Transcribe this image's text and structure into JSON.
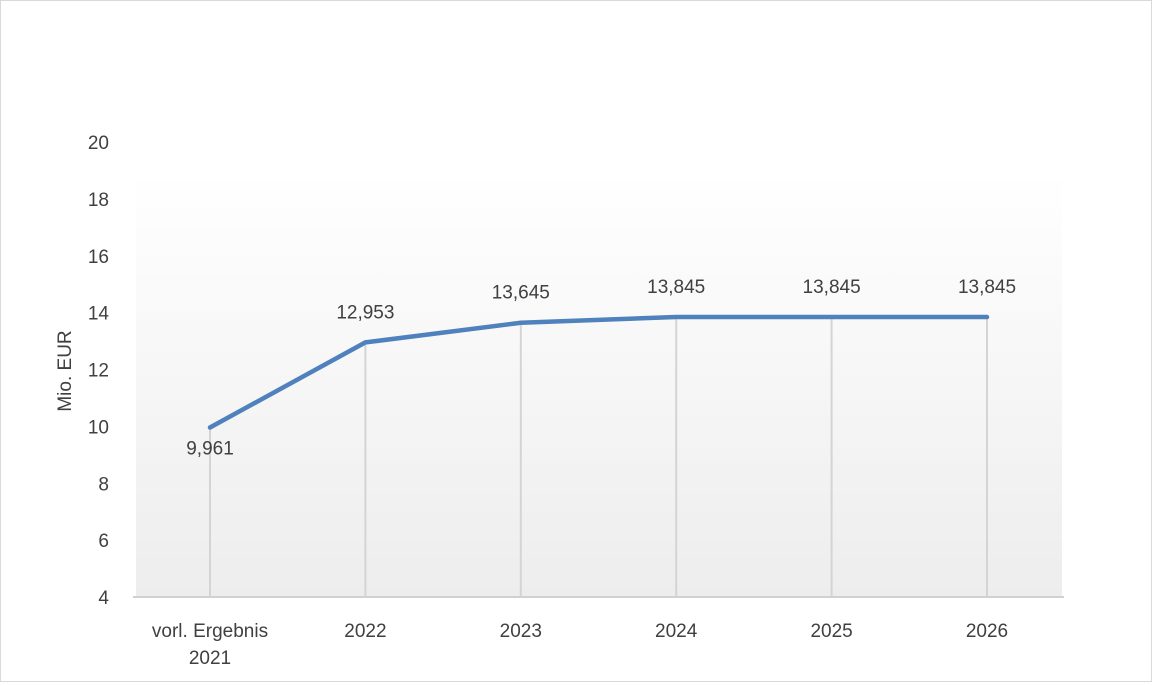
{
  "chart_data": {
    "type": "line",
    "categories": [
      "vorl. Ergebnis 2021",
      "2022",
      "2023",
      "2024",
      "2025",
      "2026"
    ],
    "category_label_lines": [
      [
        "vorl. Ergebnis",
        "2021"
      ],
      [
        "2022"
      ],
      [
        "2023"
      ],
      [
        "2024"
      ],
      [
        "2025"
      ],
      [
        "2026"
      ]
    ],
    "series": [
      {
        "values": [
          9.961,
          12.953,
          13.645,
          13.845,
          13.845,
          13.845
        ],
        "labels": [
          "9,961",
          "12,953",
          "13,645",
          "13,845",
          "13,845",
          "13,845"
        ],
        "color": "#4f81bd"
      }
    ],
    "title": "",
    "xlabel": "",
    "ylabel": "Mio. EUR",
    "ylim": [
      4,
      20
    ],
    "yticks": [
      4,
      6,
      8,
      10,
      12,
      14,
      16,
      18,
      20
    ],
    "drop_lines": true,
    "grid": false,
    "legend": "none"
  }
}
